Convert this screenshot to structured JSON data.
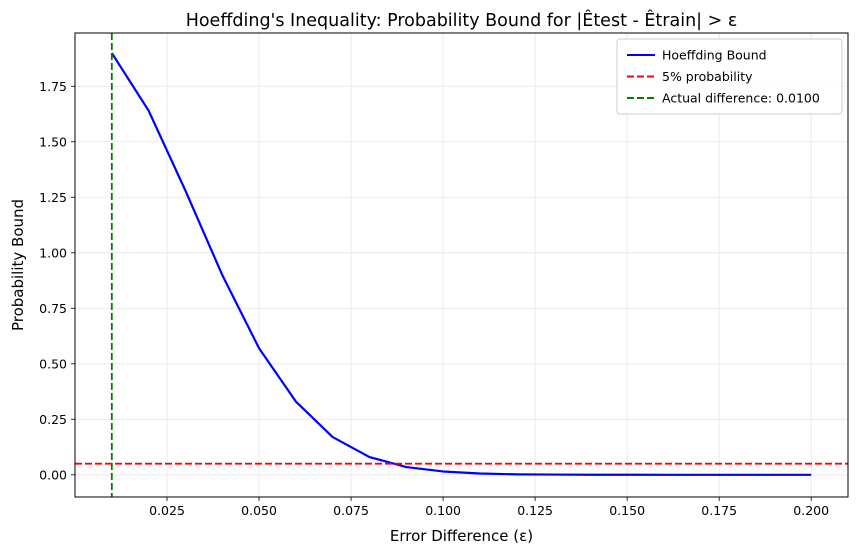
{
  "chart_data": {
    "type": "line",
    "title": "Hoeffding's Inequality: Probability Bound for |Êtest - Êtrain| > ε",
    "xlabel": "Error Difference (ε)",
    "ylabel": "Probability Bound",
    "xlim": [
      0.0,
      0.21
    ],
    "ylim": [
      -0.1,
      1.99
    ],
    "x_ticks": [
      0.025,
      0.05,
      0.075,
      0.1,
      0.125,
      0.15,
      0.175,
      0.2
    ],
    "x_tick_labels": [
      "0.025",
      "0.050",
      "0.075",
      "0.100",
      "0.125",
      "0.150",
      "0.175",
      "0.200"
    ],
    "y_ticks": [
      0.0,
      0.25,
      0.5,
      0.75,
      1.0,
      1.25,
      1.5,
      1.75
    ],
    "y_tick_labels": [
      "0.00",
      "0.25",
      "0.50",
      "0.75",
      "1.00",
      "1.25",
      "1.50",
      "1.75"
    ],
    "grid": true,
    "legend_position": "top-right",
    "series": [
      {
        "name": "Hoeffding Bound",
        "color": "#0000ff",
        "style": "solid",
        "x": [
          0.01,
          0.02,
          0.03,
          0.04,
          0.05,
          0.06,
          0.07,
          0.08,
          0.09,
          0.1,
          0.11,
          0.12,
          0.13,
          0.14,
          0.15,
          0.16,
          0.17,
          0.18,
          0.19,
          0.2
        ],
        "y": [
          1.9,
          1.64,
          1.28,
          0.9,
          0.57,
          0.33,
          0.17,
          0.08,
          0.035,
          0.015,
          0.006,
          0.002,
          0.001,
          0.0003,
          0.0001,
          0.0,
          0.0,
          0.0,
          0.0,
          0.0
        ]
      }
    ],
    "reference_lines": [
      {
        "name": "5% probability",
        "orientation": "horizontal",
        "value": 0.05,
        "color": "#ff0000",
        "style": "dashed"
      },
      {
        "name": "Actual difference: 0.0100",
        "orientation": "vertical",
        "value": 0.01,
        "color": "#008000",
        "style": "dashed"
      }
    ]
  }
}
